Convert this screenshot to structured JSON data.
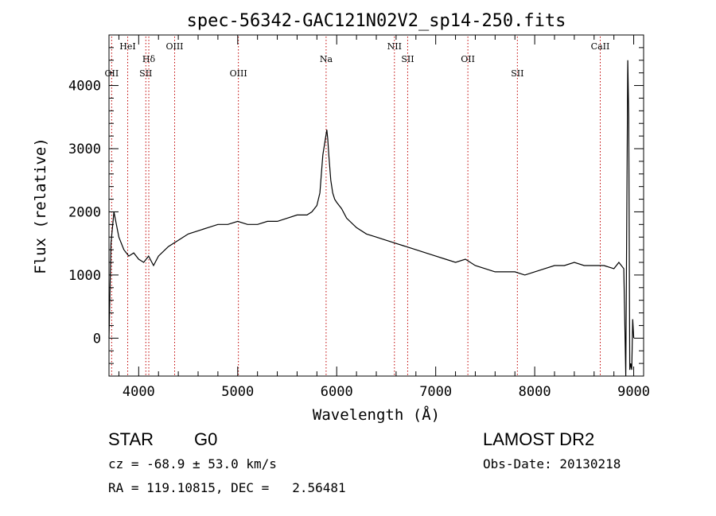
{
  "chart_data": {
    "type": "line",
    "title": "spec-56342-GAC121N02V2_sp14-250.fits",
    "xlabel": "Wavelength (Å)",
    "ylabel": "Flux (relative)",
    "xlim": [
      3700,
      9100
    ],
    "ylim": [
      -600,
      4800
    ],
    "xticks": [
      4000,
      5000,
      6000,
      7000,
      8000,
      9000
    ],
    "yticks": [
      0,
      1000,
      2000,
      3000,
      4000
    ],
    "grid": false,
    "line_color": "#000000",
    "marker_line_color": "#c00000",
    "lines": [
      {
        "name": "OII",
        "wavelength": 3727,
        "row": 2
      },
      {
        "name": "HeI",
        "wavelength": 3889,
        "row": 0
      },
      {
        "name": "Hδ",
        "wavelength": 4102,
        "row": 1
      },
      {
        "name": "SII",
        "wavelength": 4072,
        "row": 2
      },
      {
        "name": "OIII",
        "wavelength": 4363,
        "row": 0
      },
      {
        "name": "OIII",
        "wavelength": 5007,
        "row": 2
      },
      {
        "name": "Na",
        "wavelength": 5893,
        "row": 1
      },
      {
        "name": "NII",
        "wavelength": 6583,
        "row": 0
      },
      {
        "name": "SII",
        "wavelength": 6717,
        "row": 1
      },
      {
        "name": "OII",
        "wavelength": 7325,
        "row": 1
      },
      {
        "name": "SII",
        "wavelength": 7825,
        "row": 2
      },
      {
        "name": "CaII",
        "wavelength": 8662,
        "row": 0
      }
    ],
    "spectrum": {
      "x": [
        3700,
        3720,
        3750,
        3800,
        3850,
        3900,
        3950,
        4000,
        4050,
        4100,
        4150,
        4200,
        4300,
        4400,
        4500,
        4600,
        4700,
        4800,
        4900,
        5000,
        5100,
        5200,
        5300,
        5400,
        5500,
        5600,
        5700,
        5750,
        5800,
        5830,
        5860,
        5880,
        5900,
        5910,
        5920,
        5940,
        5960,
        5980,
        6000,
        6050,
        6100,
        6200,
        6300,
        6400,
        6500,
        6600,
        6700,
        6800,
        6900,
        7000,
        7100,
        7200,
        7300,
        7400,
        7500,
        7600,
        7700,
        7800,
        7900,
        8000,
        8100,
        8200,
        8300,
        8400,
        8500,
        8600,
        8700,
        8800,
        8850,
        8900,
        8920,
        8940,
        8950,
        8960,
        8970,
        8980,
        8990,
        9000
      ],
      "y": [
        0,
        1500,
        2000,
        1600,
        1400,
        1300,
        1350,
        1250,
        1200,
        1300,
        1150,
        1300,
        1450,
        1550,
        1650,
        1700,
        1750,
        1800,
        1800,
        1850,
        1800,
        1800,
        1850,
        1850,
        1900,
        1950,
        1950,
        2000,
        2100,
        2300,
        2900,
        3100,
        3300,
        3150,
        2900,
        2500,
        2300,
        2200,
        2150,
        2050,
        1900,
        1750,
        1650,
        1600,
        1550,
        1500,
        1450,
        1400,
        1350,
        1300,
        1250,
        1200,
        1250,
        1150,
        1100,
        1050,
        1050,
        1050,
        1000,
        1050,
        1100,
        1150,
        1150,
        1200,
        1150,
        1150,
        1150,
        1100,
        1200,
        1100,
        -600,
        4400,
        3500,
        -500,
        -400,
        -500,
        300,
        0
      ]
    }
  },
  "footer": {
    "object_class": "STAR",
    "subclass": "G0",
    "survey": "LAMOST DR2",
    "cz": "cz = -68.9 ± 53.0 km/s",
    "obs_date": "Obs-Date: 20130218",
    "radec": "RA = 119.10815, DEC =   2.56481"
  }
}
